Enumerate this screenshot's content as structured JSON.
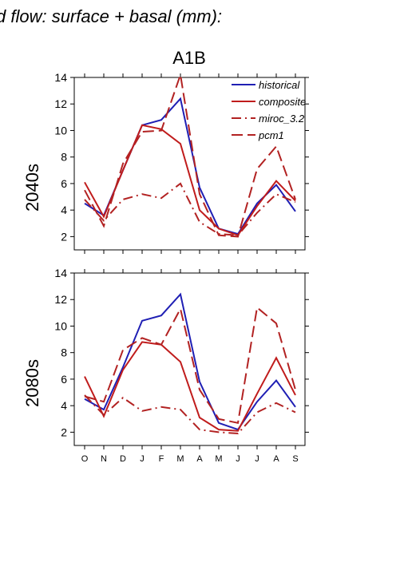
{
  "figure": {
    "title": "d flow: surface + basal (mm):",
    "scenario": "A1B"
  },
  "legend": {
    "items": [
      {
        "label": "historical",
        "color": "#1f1fb4",
        "dash": "solid"
      },
      {
        "label": "composite",
        "color": "#c01c1c",
        "dash": "solid"
      },
      {
        "label": "miroc_3.2",
        "color": "#b22222",
        "dash": "dashdot"
      },
      {
        "label": "pcm1",
        "color": "#b22222",
        "dash": "dashed"
      }
    ]
  },
  "chart_data": [
    {
      "type": "line",
      "title": "A1B",
      "ylabel": "2040s",
      "categories": [
        "O",
        "N",
        "D",
        "J",
        "F",
        "M",
        "A",
        "M",
        "J",
        "J",
        "A",
        "S"
      ],
      "ylim": [
        1,
        14
      ],
      "yticks": [
        2,
        4,
        6,
        8,
        10,
        12,
        14
      ],
      "legend_position": "top-right",
      "grid": false,
      "series": [
        {
          "name": "historical",
          "values": [
            4.5,
            3.6,
            7.0,
            10.4,
            10.8,
            12.4,
            5.7,
            2.6,
            2.2,
            4.5,
            5.9,
            3.9
          ]
        },
        {
          "name": "composite",
          "values": [
            6.1,
            3.5,
            7.0,
            10.4,
            10.1,
            9.0,
            4.0,
            2.6,
            2.1,
            4.3,
            6.2,
            4.7
          ]
        },
        {
          "name": "miroc_3.2",
          "values": [
            4.8,
            3.2,
            4.8,
            5.2,
            4.9,
            6.0,
            3.1,
            2.2,
            2.1,
            3.8,
            5.2,
            4.6
          ]
        },
        {
          "name": "pcm1",
          "values": [
            5.5,
            2.8,
            7.5,
            9.9,
            10.0,
            14.2,
            5.2,
            2.1,
            2.0,
            7.1,
            8.8,
            4.8
          ]
        }
      ]
    },
    {
      "type": "line",
      "title": "",
      "ylabel": "2080s",
      "categories": [
        "O",
        "N",
        "D",
        "J",
        "F",
        "M",
        "A",
        "M",
        "J",
        "J",
        "A",
        "S"
      ],
      "ylim": [
        1,
        14
      ],
      "yticks": [
        2,
        4,
        6,
        8,
        10,
        12,
        14
      ],
      "grid": false,
      "series": [
        {
          "name": "historical",
          "values": [
            4.5,
            3.7,
            6.9,
            10.4,
            10.8,
            12.4,
            5.8,
            2.7,
            2.2,
            4.3,
            5.9,
            3.9
          ]
        },
        {
          "name": "composite",
          "values": [
            6.2,
            3.2,
            6.7,
            8.8,
            8.6,
            7.3,
            3.1,
            2.2,
            2.1,
            4.9,
            7.6,
            4.8
          ]
        },
        {
          "name": "miroc_3.2",
          "values": [
            4.8,
            3.3,
            4.6,
            3.6,
            3.9,
            3.7,
            2.2,
            2.0,
            1.9,
            3.5,
            4.2,
            3.5
          ]
        },
        {
          "name": "pcm1",
          "values": [
            4.7,
            4.3,
            8.2,
            9.1,
            8.6,
            11.3,
            5.2,
            3.0,
            2.7,
            11.4,
            10.2,
            5.2
          ]
        }
      ]
    }
  ]
}
